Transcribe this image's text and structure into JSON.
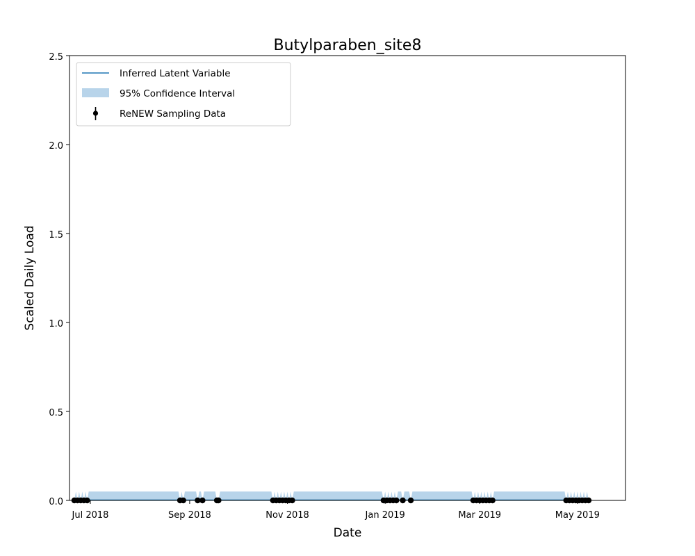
{
  "chart_data": {
    "type": "line",
    "title": "Butylparaben_site8",
    "xlabel": "Date",
    "ylabel": "Scaled Daily Load",
    "ylim": [
      0,
      2.5
    ],
    "xlim": [
      "2018-06-18",
      "2019-05-31"
    ],
    "y_ticks": [
      {
        "value": 0.0,
        "label": "0.0"
      },
      {
        "value": 0.5,
        "label": "0.5"
      },
      {
        "value": 1.0,
        "label": "1.0"
      },
      {
        "value": 1.5,
        "label": "1.5"
      },
      {
        "value": 2.0,
        "label": "2.0"
      },
      {
        "value": 2.5,
        "label": "2.5"
      }
    ],
    "x_ticks": [
      {
        "value": "2018-07-01",
        "label": "Jul 2018"
      },
      {
        "value": "2018-09-01",
        "label": "Sep 2018"
      },
      {
        "value": "2018-11-01",
        "label": "Nov 2018"
      },
      {
        "value": "2019-01-01",
        "label": "Jan 2019"
      },
      {
        "value": "2019-03-01",
        "label": "Mar 2019"
      },
      {
        "value": "2019-05-01",
        "label": "May 2019"
      }
    ],
    "legend": {
      "position": "upper-left",
      "entries": [
        "Inferred Latent Variable",
        "95% Confidence Interval",
        "ReNEW Sampling Data"
      ]
    },
    "colors": {
      "latent": "#1f77b4",
      "ci": "#b8d4ea",
      "samples": "#000000"
    },
    "latent_level": 0.002,
    "ci_upper": 0.05,
    "ci_upper_at_samples": 0.0,
    "samples": {
      "y": 0.0,
      "dates": [
        "2018-06-21",
        "2018-06-23",
        "2018-06-25",
        "2018-06-27",
        "2018-06-29",
        "2018-08-26",
        "2018-08-28",
        "2018-09-06",
        "2018-09-09",
        "2018-09-18",
        "2018-09-19",
        "2018-10-23",
        "2018-10-25",
        "2018-10-27",
        "2018-10-29",
        "2018-10-31",
        "2018-11-02",
        "2018-11-04",
        "2018-12-31",
        "2019-01-02",
        "2019-01-04",
        "2019-01-06",
        "2019-01-08",
        "2019-01-12",
        "2019-01-17",
        "2019-02-25",
        "2019-02-27",
        "2019-03-01",
        "2019-03-03",
        "2019-03-05",
        "2019-03-07",
        "2019-03-09",
        "2019-04-24",
        "2019-04-26",
        "2019-04-28",
        "2019-04-30",
        "2019-05-02",
        "2019-05-04",
        "2019-05-06",
        "2019-05-08"
      ]
    }
  }
}
